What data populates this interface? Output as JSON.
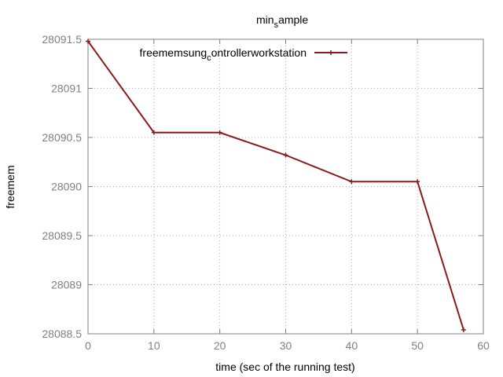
{
  "chart_data": {
    "type": "line",
    "title": "min_sample",
    "title_parts": {
      "base": "min",
      "sub": "s",
      "rest": "ample"
    },
    "xlabel": "time (sec of the running test)",
    "ylabel": "freemem",
    "xlim": [
      0,
      60
    ],
    "ylim": [
      28088.5,
      28091.5
    ],
    "xticks": [
      "0",
      "10",
      "20",
      "30",
      "40",
      "50",
      "60"
    ],
    "yticks": [
      "28088.5",
      "28089",
      "28089.5",
      "28090",
      "28090.5",
      "28091",
      "28091.5"
    ],
    "grid": true,
    "legend_position": "top-center",
    "series": [
      {
        "name": "freememsung_controllerworkstation",
        "legend_parts": {
          "a": "freememsung",
          "sub": "c",
          "b": "ontrollerworkstation"
        },
        "color": "#8b1a1a",
        "x": [
          0,
          10,
          20,
          30,
          40,
          50,
          57
        ],
        "y": [
          28091.48,
          28090.55,
          28090.55,
          28090.32,
          28090.05,
          28090.05,
          28088.54
        ]
      }
    ]
  }
}
